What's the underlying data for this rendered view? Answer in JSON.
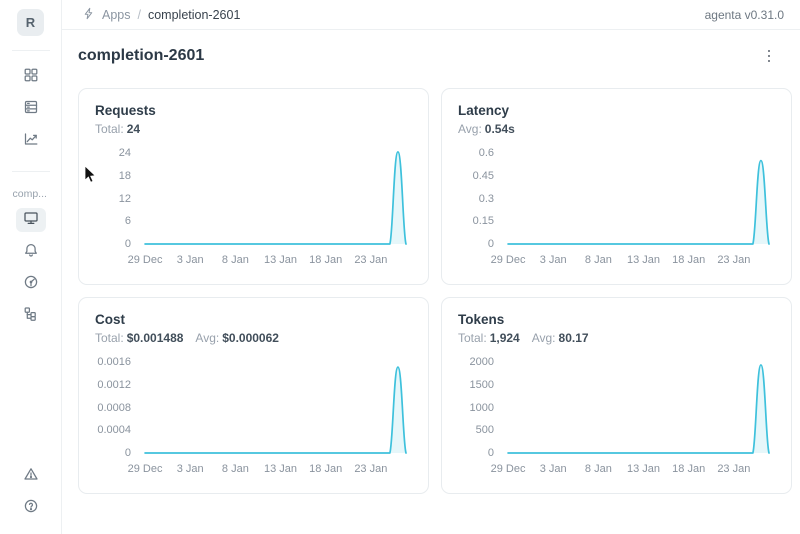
{
  "topbar": {
    "breadcrumb": {
      "section": "Apps",
      "separator": "/",
      "current": "completion-2601"
    },
    "version": "agenta v0.31.0"
  },
  "sidebar": {
    "workspace_initial": "R",
    "app_label": "comp..."
  },
  "page": {
    "title": "completion-2601"
  },
  "accent_color": "#3ec1dc",
  "chart_data": [
    {
      "type": "area",
      "title": "Requests",
      "stats": [
        {
          "label": "Total:",
          "value": "24"
        }
      ],
      "x_ticks": [
        "29 Dec",
        "3 Jan",
        "8 Jan",
        "13 Jan",
        "18 Jan",
        "23 Jan"
      ],
      "x_tick_days": [
        0,
        5,
        10,
        15,
        20,
        25
      ],
      "x_domain_days": 29,
      "y_ticks": [
        "0",
        "6",
        "12",
        "18",
        "24"
      ],
      "ylim": [
        0,
        24
      ],
      "points": [
        {
          "x": "29 Dec",
          "y": 0
        },
        {
          "x": "25 Jan",
          "y": 0
        },
        {
          "x": "26 Jan",
          "y": 24
        },
        {
          "x": "27 Jan",
          "y": 0
        }
      ],
      "peak_day": 28,
      "peak_value": 24.3,
      "line_color": "#3ec1dc"
    },
    {
      "type": "area",
      "title": "Latency",
      "stats": [
        {
          "label": "Avg:",
          "value": "0.54s"
        }
      ],
      "x_ticks": [
        "29 Dec",
        "3 Jan",
        "8 Jan",
        "13 Jan",
        "18 Jan",
        "23 Jan"
      ],
      "x_tick_days": [
        0,
        5,
        10,
        15,
        20,
        25
      ],
      "x_domain_days": 29,
      "y_ticks": [
        "0",
        "0.15",
        "0.3",
        "0.45",
        "0.6"
      ],
      "ylim": [
        0,
        0.6
      ],
      "points": [
        {
          "x": "29 Dec",
          "y": 0
        },
        {
          "x": "25 Jan",
          "y": 0
        },
        {
          "x": "26 Jan",
          "y": 0.54
        },
        {
          "x": "27 Jan",
          "y": 0
        }
      ],
      "peak_day": 28,
      "peak_value": 0.55,
      "line_color": "#3ec1dc"
    },
    {
      "type": "area",
      "title": "Cost",
      "stats": [
        {
          "label": "Total:",
          "value": "$0.001488"
        },
        {
          "label": "Avg:",
          "value": "$0.000062"
        }
      ],
      "x_ticks": [
        "29 Dec",
        "3 Jan",
        "8 Jan",
        "13 Jan",
        "18 Jan",
        "23 Jan"
      ],
      "x_tick_days": [
        0,
        5,
        10,
        15,
        20,
        25
      ],
      "x_domain_days": 29,
      "y_ticks": [
        "0",
        "0.0004",
        "0.0008",
        "0.0012",
        "0.0016"
      ],
      "ylim": [
        0,
        0.0016
      ],
      "points": [
        {
          "x": "29 Dec",
          "y": 0
        },
        {
          "x": "25 Jan",
          "y": 0
        },
        {
          "x": "26 Jan",
          "y": 0.001488
        },
        {
          "x": "27 Jan",
          "y": 0
        }
      ],
      "peak_day": 28,
      "peak_value": 0.00151,
      "line_color": "#3ec1dc"
    },
    {
      "type": "area",
      "title": "Tokens",
      "stats": [
        {
          "label": "Total:",
          "value": "1,924"
        },
        {
          "label": "Avg:",
          "value": "80.17"
        }
      ],
      "x_ticks": [
        "29 Dec",
        "3 Jan",
        "8 Jan",
        "13 Jan",
        "18 Jan",
        "23 Jan"
      ],
      "x_tick_days": [
        0,
        5,
        10,
        15,
        20,
        25
      ],
      "x_domain_days": 29,
      "y_ticks": [
        "0",
        "500",
        "1000",
        "1500",
        "2000"
      ],
      "ylim": [
        0,
        2000
      ],
      "points": [
        {
          "x": "29 Dec",
          "y": 0
        },
        {
          "x": "25 Jan",
          "y": 0
        },
        {
          "x": "26 Jan",
          "y": 1924
        },
        {
          "x": "27 Jan",
          "y": 0
        }
      ],
      "peak_day": 28,
      "peak_value": 1935,
      "line_color": "#3ec1dc"
    }
  ]
}
